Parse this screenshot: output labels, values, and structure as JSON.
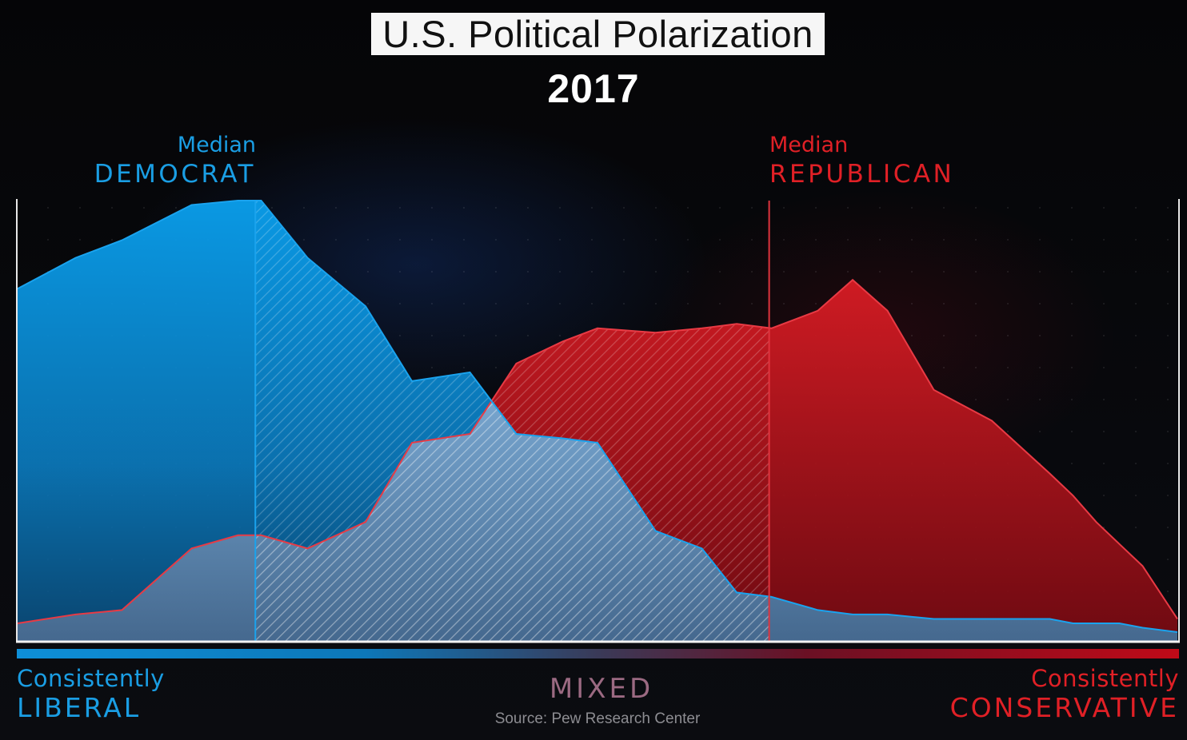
{
  "title": "U.S. Political Polarization",
  "year": "2017",
  "median_democrat": {
    "line1": "Median",
    "line2": "DEMOCRAT"
  },
  "median_republican": {
    "line1": "Median",
    "line2": "REPUBLICAN"
  },
  "axis": {
    "left": {
      "line1": "Consistently",
      "line2": "LIBERAL"
    },
    "center": "MIXED",
    "right": {
      "line1": "Consistently",
      "line2": "CONSERVATIVE"
    }
  },
  "source": "Source: Pew Research Center",
  "colors": {
    "democrat": "#1a9ee4",
    "republican": "#e02026",
    "background": "#000000"
  },
  "chart_data": {
    "type": "area",
    "title": "U.S. Political Polarization",
    "subtitle": "2017",
    "xlabel": "",
    "ylabel": "",
    "xlim": [
      0,
      100
    ],
    "ylim": [
      0,
      100
    ],
    "grid": false,
    "x": [
      0,
      5,
      9,
      15,
      19,
      21,
      25,
      30,
      34,
      39,
      43,
      47,
      50,
      55,
      59,
      62,
      65,
      69,
      72,
      75,
      79,
      84,
      89,
      91,
      93,
      95,
      97,
      100
    ],
    "series": [
      {
        "name": "DEMOCRAT",
        "values": [
          80,
          87,
          91,
          99,
          100,
          100,
          87,
          76,
          59,
          61,
          47,
          46,
          45,
          25,
          21,
          11,
          10,
          7,
          6,
          6,
          5,
          5,
          5,
          4,
          4,
          4,
          3,
          2
        ],
        "median_x": 20.5
      },
      {
        "name": "REPUBLICAN",
        "values": [
          4,
          6,
          7,
          21,
          24,
          24,
          21,
          27,
          45,
          47,
          63,
          68,
          71,
          70,
          71,
          72,
          71,
          75,
          82,
          75,
          57,
          50,
          38,
          33,
          27,
          22,
          17,
          5
        ],
        "median_x": 64.8
      }
    ]
  }
}
